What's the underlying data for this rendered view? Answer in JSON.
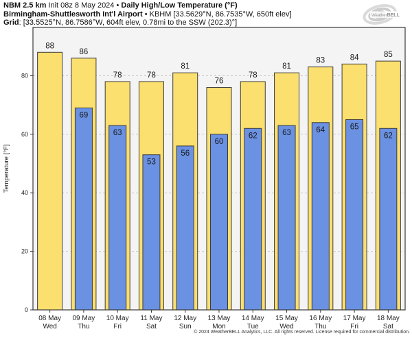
{
  "header": {
    "line1": {
      "model": "NBM 2.5 km",
      "run": " Init 08z 8 May 2024 • ",
      "title": "Daily High/Low Temperature (°F)"
    },
    "line2": {
      "station": "Birmingham-Shuttlesworth Int'l Airport",
      "details": " • KBHM [33.5629°N, 86.7535°W, 650ft elev]"
    },
    "line3": {
      "label": "Grid",
      "details": ": [33.5525°N, 86.7586°W, 604ft elev, 0.78mi to the SSW (202.3)°]"
    }
  },
  "logo": {
    "brand_left": "Weather",
    "brand_right": "BELL"
  },
  "chart_data": {
    "type": "bar",
    "title": "Daily High/Low Temperature (°F)",
    "categories": [
      "08 May",
      "09 May",
      "10 May",
      "11 May",
      "12 May",
      "13 May",
      "14 May",
      "15 May",
      "16 May",
      "17 May",
      "18 May"
    ],
    "weekdays": [
      "Wed",
      "Thu",
      "Fri",
      "Sat",
      "Sun",
      "Mon",
      "Tue",
      "Wed",
      "Thu",
      "Fri",
      "Sat"
    ],
    "series": [
      {
        "name": "Daily High",
        "color": "#fbdf6f",
        "values": [
          88,
          86,
          78,
          78,
          81,
          76,
          78,
          81,
          83,
          84,
          85
        ]
      },
      {
        "name": "Daily Low",
        "color": "#6a91e2",
        "values": [
          null,
          69,
          63,
          53,
          56,
          60,
          62,
          63,
          64,
          65,
          62
        ]
      }
    ],
    "xlabel": "",
    "ylabel": "Temperature [°F]",
    "ylim": [
      0,
      96.5
    ],
    "yticks": [
      0,
      20,
      40,
      60,
      80
    ],
    "grid": "horizontal dashed at yticks",
    "legend": "none",
    "colors": {
      "plot_bg": "#f4f4f4",
      "frame": "#3a3a3a",
      "bar_outline": "#3c3c3c",
      "gridline": "#c9c9c9",
      "label_text": "#1a1a1a"
    }
  },
  "footer": {
    "copyright": "© 2024 WeatherBELL Analytics, LLC. All rights reserved. License required for commercial distribution."
  }
}
